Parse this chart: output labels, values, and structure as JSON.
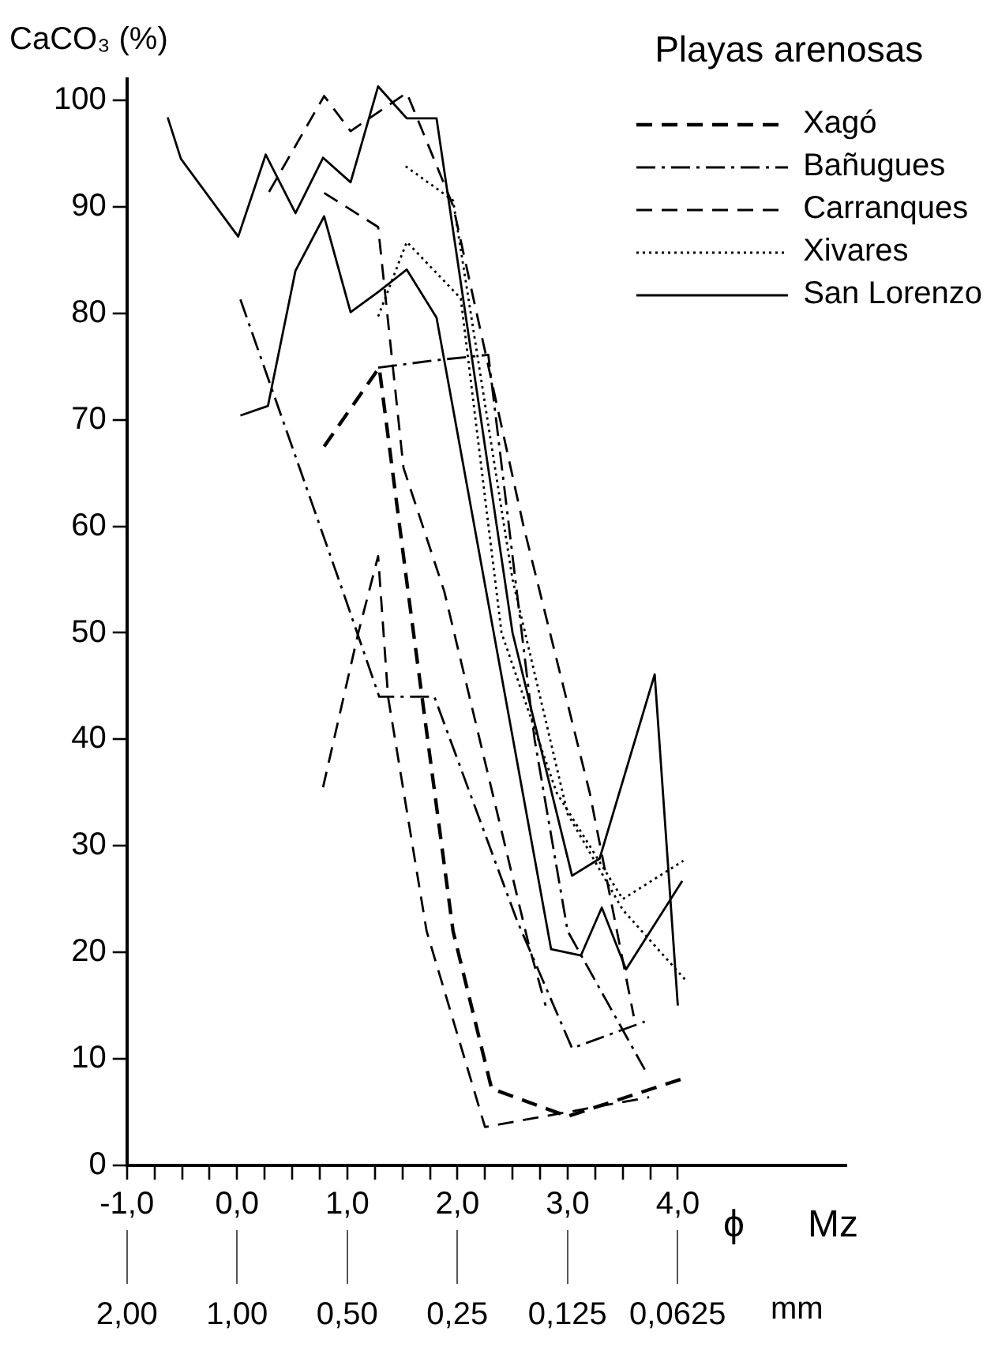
{
  "chart_data": {
    "type": "line",
    "ylabel": "CaCO₃ (%)",
    "xlabel": "ϕ Mz",
    "x2label": "mm",
    "legend_title": "Playas arenosas",
    "legend": "top right",
    "xlim": [
      -1,
      5.53
    ],
    "ylim": [
      0,
      102
    ],
    "log": "x2",
    "xticks": [
      {
        "value": -1,
        "label": "-1,0"
      },
      {
        "value": -0.75,
        "label": null
      },
      {
        "value": -0.5,
        "label": null
      },
      {
        "value": -0.25,
        "label": null
      },
      {
        "value": 0,
        "label": "0,0"
      },
      {
        "value": 0.25,
        "label": null
      },
      {
        "value": 0.5,
        "label": null
      },
      {
        "value": 0.75,
        "label": null
      },
      {
        "value": 1,
        "label": "1,0"
      },
      {
        "value": 1.25,
        "label": null
      },
      {
        "value": 1.5,
        "label": null
      },
      {
        "value": 1.75,
        "label": null
      },
      {
        "value": 2,
        "label": "2,0"
      },
      {
        "value": 2.25,
        "label": null
      },
      {
        "value": 2.5,
        "label": null
      },
      {
        "value": 2.75,
        "label": null
      },
      {
        "value": 3,
        "label": "3,0"
      },
      {
        "value": 3.25,
        "label": null
      },
      {
        "value": 3.5,
        "label": null
      },
      {
        "value": 3.75,
        "label": null
      },
      {
        "value": 4,
        "label": "4,0"
      }
    ],
    "x2lim": [
      2,
      0.0216
    ],
    "x2ticks": [
      {
        "value": 2,
        "label": "2,00"
      },
      {
        "value": 1,
        "label": "1,00"
      },
      {
        "value": 0.5,
        "label": "0,50"
      },
      {
        "value": 0.25,
        "label": "0,25"
      },
      {
        "value": 0.125,
        "label": "0,125"
      },
      {
        "value": 0.0625,
        "label": "0,0625"
      }
    ],
    "yticks": [
      0,
      10,
      20,
      30,
      40,
      50,
      60,
      70,
      80,
      90,
      100
    ],
    "series": [
      {
        "name": "Xagó",
        "color": "#000000",
        "line_style": "dashed",
        "x": [
          0.79,
          1.29,
          1.55,
          1.96,
          2.31,
          3.0,
          4.09
        ],
        "values": [
          67.5,
          74.9,
          54,
          22,
          7.2,
          4.6,
          8.3
        ]
      },
      {
        "color": "#000000",
        "line_style": "dashed",
        "x": [
          0.78,
          1.1,
          1.28,
          1.37,
          1.72,
          2.25,
          3.74
        ],
        "values": [
          35.5,
          50,
          57.2,
          44,
          22,
          3.6,
          6.4
        ]
      },
      {
        "name": "Bañugues",
        "color": "#000000",
        "line_style": "dashdot",
        "x": [
          0.03,
          0.96,
          1.29,
          1.79,
          2.54,
          3.04,
          3.7
        ],
        "values": [
          81.3,
          53.9,
          44,
          44,
          23,
          11,
          13.5
        ]
      },
      {
        "color": "#000000",
        "line_style": "dashdot",
        "x": [
          1.28,
          1.81,
          2.28,
          2.7,
          3.0,
          3.7
        ],
        "values": [
          74.9,
          75.6,
          76.1,
          40,
          22,
          9
        ]
      },
      {
        "name": "Carranques",
        "color": "#000000",
        "line_style": "dashed",
        "x": [
          0.29,
          0.79,
          1.03,
          1.54,
          1.96,
          2.6,
          3.2,
          3.6
        ],
        "values": [
          91.4,
          100.4,
          97.1,
          100.7,
          90.1,
          60,
          35,
          14
        ]
      },
      {
        "color": "#000000",
        "line_style": "dashed",
        "x": [
          0.79,
          1.28,
          1.51,
          1.88,
          2.65,
          2.8
        ],
        "values": [
          91.3,
          88.1,
          65.5,
          53.9,
          20.6,
          15
        ]
      },
      {
        "name": "Xivares",
        "color": "#000000",
        "line_style": "dotted",
        "x": [
          1.53,
          1.96,
          2.5,
          3.0,
          3.5,
          4.07
        ],
        "values": [
          93.8,
          90.6,
          55,
          33,
          24,
          17.4
        ]
      },
      {
        "color": "#000000",
        "line_style": "dotted",
        "x": [
          1.28,
          1.54,
          2.03,
          2.4,
          2.9,
          3.5,
          4.05
        ],
        "values": [
          79.7,
          86.7,
          81.4,
          50,
          35,
          25,
          28.6
        ]
      },
      {
        "name": "San Lorenzo",
        "color": "#000000",
        "line_style": "solid",
        "x": [
          -0.63,
          -0.51,
          0.01,
          0.26,
          0.53,
          0.78,
          1.03,
          1.28,
          1.54,
          1.81,
          2.5,
          3.04,
          3.29,
          3.79,
          4.0
        ],
        "values": [
          98.4,
          94.5,
          87.2,
          94.9,
          89.4,
          94.6,
          92.3,
          101.3,
          98.3,
          98.3,
          50,
          27.2,
          28.8,
          46.1,
          15
        ]
      },
      {
        "color": "#000000",
        "line_style": "solid",
        "x": [
          0.03,
          0.28,
          0.53,
          0.79,
          1.03,
          1.28,
          1.54,
          1.81,
          2.85,
          3.12,
          3.31,
          3.53,
          4.04
        ],
        "values": [
          70.4,
          71.3,
          84,
          89.1,
          80.1,
          82,
          84.1,
          79.6,
          20.3,
          19.7,
          24.2,
          18.4,
          26.7
        ]
      }
    ]
  }
}
